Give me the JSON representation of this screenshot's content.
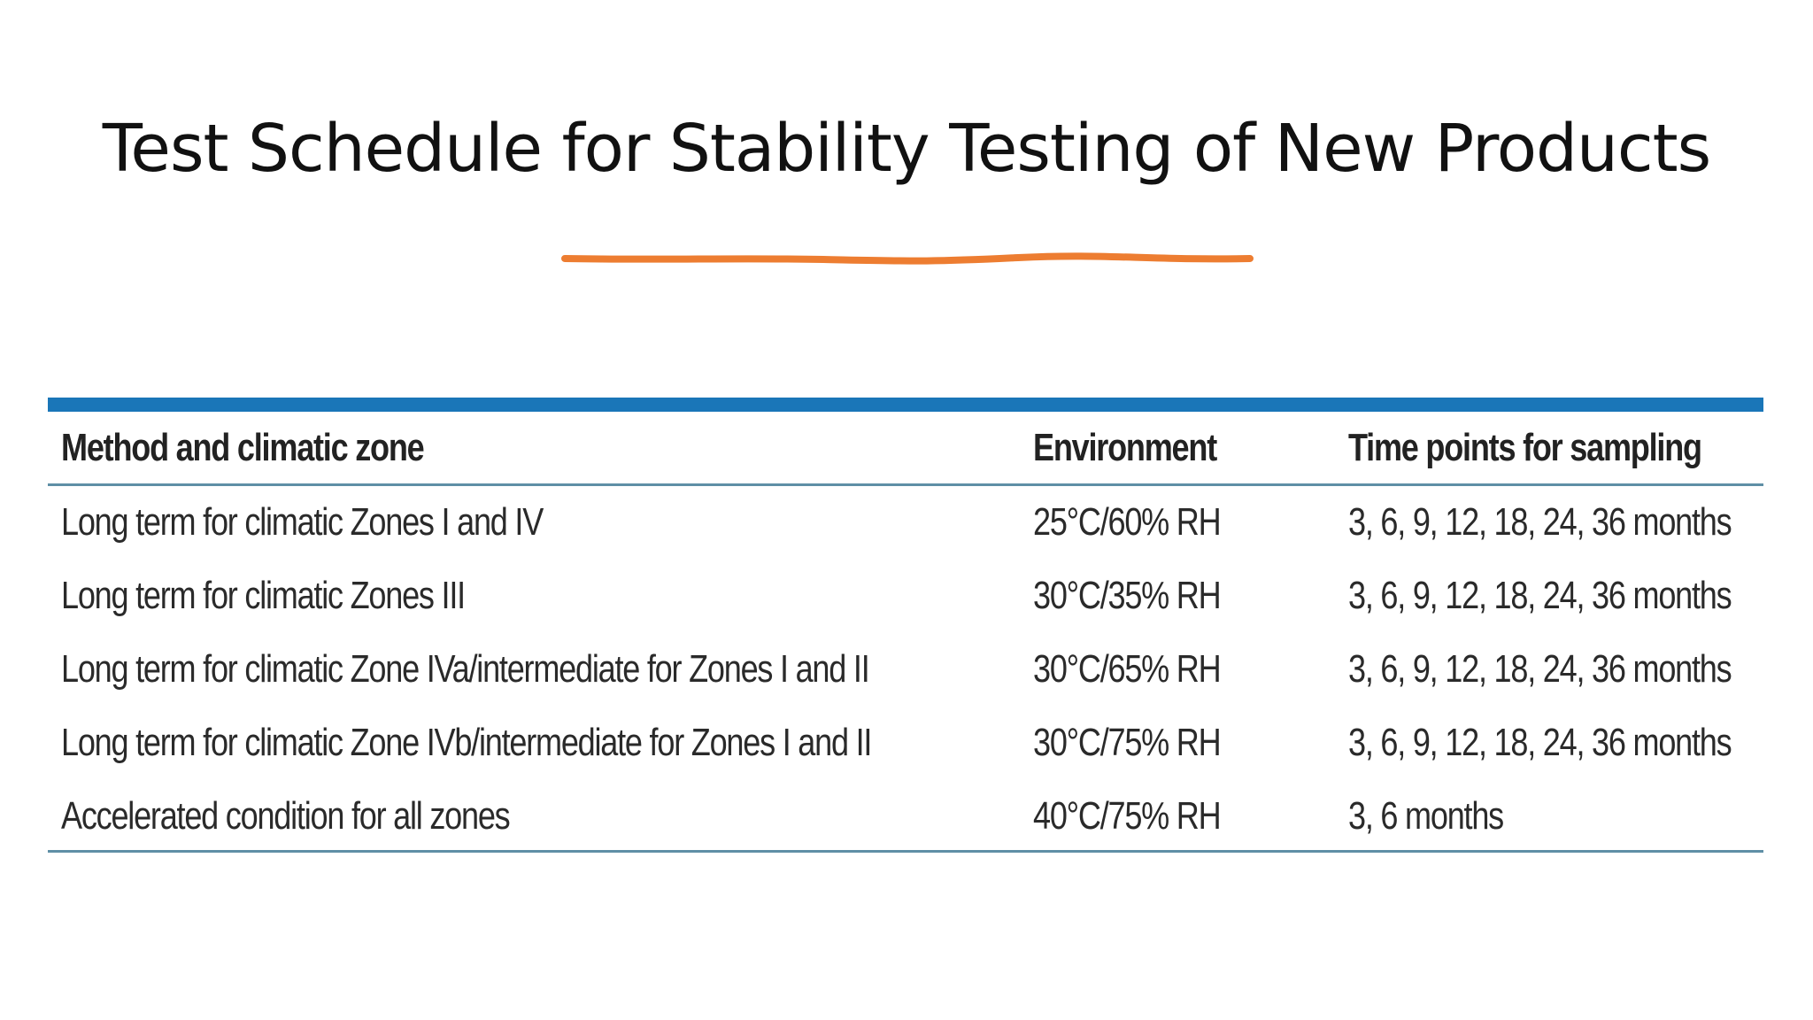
{
  "slide": {
    "title": "Test Schedule for Stability Testing of New Products",
    "underline_color": "#ed7d31"
  },
  "table": {
    "header_bar_color": "#1a76b8",
    "columns": [
      "Method and climatic zone",
      "Environment",
      "Time points for sampling"
    ],
    "rows": [
      {
        "method": "Long term for climatic Zones I and IV",
        "environment": "25°C/60% RH",
        "time_points": "3, 6, 9, 12, 18, 24, 36 months"
      },
      {
        "method": "Long term for climatic Zones III",
        "environment": "30°C/35% RH",
        "time_points": "3, 6, 9, 12, 18, 24, 36 months"
      },
      {
        "method": "Long term for climatic Zone IVa/intermediate for Zones I and II",
        "environment": "30°C/65% RH",
        "time_points": "3, 6, 9, 12, 18, 24, 36 months"
      },
      {
        "method": "Long term for climatic Zone IVb/intermediate for Zones I and II",
        "environment": "30°C/75% RH",
        "time_points": "3, 6, 9, 12, 18, 24, 36 months"
      },
      {
        "method": "Accelerated condition for all zones",
        "environment": "40°C/75% RH",
        "time_points": "3, 6 months"
      }
    ]
  }
}
